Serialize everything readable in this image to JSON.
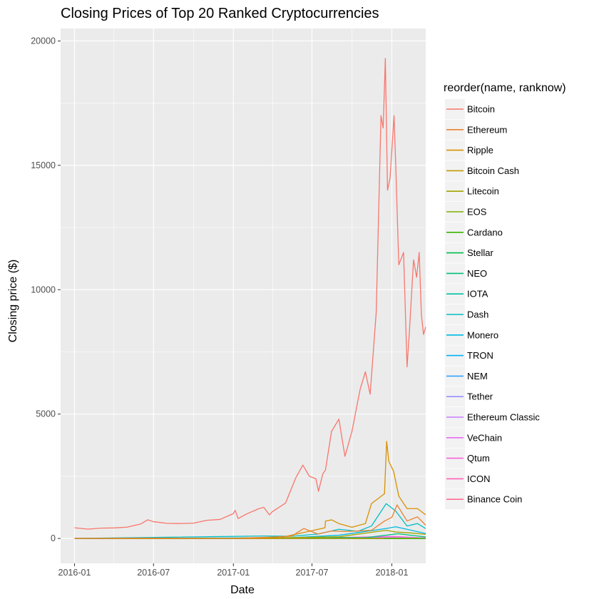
{
  "chart_data": {
    "type": "line",
    "title": "Closing Prices of Top 20 Ranked Cryptocurrencies",
    "xlabel": "Date",
    "ylabel": "Closing price ($)",
    "x_tick_labels": [
      "2016-01",
      "2016-07",
      "2017-01",
      "2017-07",
      "2018-01"
    ],
    "x_ticks": [
      "2016-01-01",
      "2016-07-01",
      "2017-01-01",
      "2017-07-01",
      "2018-01-01"
    ],
    "y_ticks": [
      0,
      5000,
      10000,
      15000,
      20000
    ],
    "y_tick_labels": [
      "0",
      "5000",
      "10000",
      "15000",
      "20000"
    ],
    "xlim": [
      "2015-11-30",
      "2018-03-20"
    ],
    "ylim": [
      -1000,
      20500
    ],
    "grid": true,
    "legend": {
      "title": "reorder(name, ranknow)",
      "placement": "right"
    },
    "series": [
      {
        "name": "Bitcoin",
        "color": "#F8766D",
        "points": [
          [
            "2016-01-01",
            430
          ],
          [
            "2016-02-01",
            375
          ],
          [
            "2016-03-01",
            415
          ],
          [
            "2016-04-01",
            425
          ],
          [
            "2016-05-01",
            455
          ],
          [
            "2016-06-01",
            580
          ],
          [
            "2016-06-18",
            750
          ],
          [
            "2016-07-01",
            675
          ],
          [
            "2016-08-01",
            610
          ],
          [
            "2016-09-01",
            600
          ],
          [
            "2016-10-01",
            615
          ],
          [
            "2016-11-01",
            730
          ],
          [
            "2016-12-01",
            765
          ],
          [
            "2017-01-01",
            1000
          ],
          [
            "2017-01-05",
            1130
          ],
          [
            "2017-01-12",
            800
          ],
          [
            "2017-02-01",
            990
          ],
          [
            "2017-03-01",
            1200
          ],
          [
            "2017-03-12",
            1250
          ],
          [
            "2017-03-25",
            950
          ],
          [
            "2017-04-01",
            1080
          ],
          [
            "2017-05-01",
            1420
          ],
          [
            "2017-05-25",
            2450
          ],
          [
            "2017-06-10",
            2950
          ],
          [
            "2017-06-25",
            2500
          ],
          [
            "2017-07-10",
            2400
          ],
          [
            "2017-07-16",
            1900
          ],
          [
            "2017-07-26",
            2600
          ],
          [
            "2017-08-01",
            2750
          ],
          [
            "2017-08-15",
            4300
          ],
          [
            "2017-09-01",
            4800
          ],
          [
            "2017-09-15",
            3300
          ],
          [
            "2017-10-01",
            4300
          ],
          [
            "2017-10-20",
            6000
          ],
          [
            "2017-11-01",
            6700
          ],
          [
            "2017-11-12",
            5800
          ],
          [
            "2017-11-26",
            9100
          ],
          [
            "2017-12-07",
            17000
          ],
          [
            "2017-12-12",
            16500
          ],
          [
            "2017-12-17",
            19300
          ],
          [
            "2017-12-22",
            14000
          ],
          [
            "2017-12-28",
            14500
          ],
          [
            "2018-01-06",
            17000
          ],
          [
            "2018-01-10",
            15000
          ],
          [
            "2018-01-17",
            11000
          ],
          [
            "2018-01-28",
            11500
          ],
          [
            "2018-02-05",
            6900
          ],
          [
            "2018-02-10",
            8200
          ],
          [
            "2018-02-20",
            11200
          ],
          [
            "2018-02-27",
            10500
          ],
          [
            "2018-03-05",
            11500
          ],
          [
            "2018-03-10",
            9000
          ],
          [
            "2018-03-15",
            8200
          ],
          [
            "2018-03-20",
            8500
          ]
        ]
      },
      {
        "name": "Ethereum",
        "color": "#EA8331",
        "points": [
          [
            "2016-01-01",
            1
          ],
          [
            "2016-06-01",
            14
          ],
          [
            "2017-01-01",
            8
          ],
          [
            "2017-03-15",
            45
          ],
          [
            "2017-05-15",
            90
          ],
          [
            "2017-06-12",
            400
          ],
          [
            "2017-07-15",
            180
          ],
          [
            "2017-08-15",
            300
          ],
          [
            "2017-09-15",
            280
          ],
          [
            "2017-10-15",
            300
          ],
          [
            "2017-11-15",
            330
          ],
          [
            "2017-12-15",
            700
          ],
          [
            "2018-01-01",
            850
          ],
          [
            "2018-01-13",
            1350
          ],
          [
            "2018-02-05",
            700
          ],
          [
            "2018-03-01",
            870
          ],
          [
            "2018-03-20",
            530
          ]
        ]
      },
      {
        "name": "Ripple",
        "color": "#D89000",
        "points": [
          [
            "2016-01-01",
            0.5
          ],
          [
            "2017-03-20",
            0.5
          ],
          [
            "2017-04-10",
            0.5
          ],
          [
            "2017-07-31",
            430
          ],
          [
            "2017-08-01",
            700
          ],
          [
            "2017-08-15",
            750
          ],
          [
            "2017-09-01",
            600
          ],
          [
            "2017-10-01",
            450
          ],
          [
            "2017-11-01",
            600
          ],
          [
            "2017-11-15",
            1400
          ],
          [
            "2017-12-15",
            1800
          ],
          [
            "2017-12-20",
            3900
          ],
          [
            "2017-12-25",
            3100
          ],
          [
            "2018-01-05",
            2700
          ],
          [
            "2018-01-17",
            1700
          ],
          [
            "2018-02-05",
            1200
          ],
          [
            "2018-03-01",
            1200
          ],
          [
            "2018-03-20",
            950
          ]
        ]
      },
      {
        "name": "Bitcoin Cash",
        "color": "#C09B00",
        "points": [
          [
            "2016-01-01",
            0
          ],
          [
            "2017-03-20",
            0
          ],
          [
            "2017-04-10",
            0
          ],
          [
            "2017-04-20",
            0
          ],
          [
            "2017-12-15",
            0
          ]
        ]
      },
      {
        "name": "Litecoin",
        "color": "#A3A500",
        "points": [
          [
            "2016-01-01",
            3
          ],
          [
            "2017-01-01",
            4
          ],
          [
            "2017-05-15",
            30
          ],
          [
            "2017-09-01",
            70
          ],
          [
            "2017-12-19",
            330
          ],
          [
            "2018-01-10",
            260
          ],
          [
            "2018-02-15",
            220
          ],
          [
            "2018-03-20",
            165
          ]
        ]
      },
      {
        "name": "EOS",
        "color": "#7CAE00",
        "points": [
          [
            "2017-07-01",
            2
          ],
          [
            "2017-12-15",
            10
          ],
          [
            "2018-01-15",
            16
          ],
          [
            "2018-03-20",
            6
          ]
        ]
      },
      {
        "name": "Cardano",
        "color": "#39B600",
        "points": [
          [
            "2017-10-01",
            0.02
          ],
          [
            "2018-01-05",
            1
          ],
          [
            "2018-03-20",
            0.2
          ]
        ]
      },
      {
        "name": "Stellar",
        "color": "#00BB4E",
        "points": [
          [
            "2016-01-01",
            0
          ],
          [
            "2018-01-05",
            0.8
          ],
          [
            "2018-03-20",
            0.3
          ]
        ]
      },
      {
        "name": "NEO",
        "color": "#00BF7D",
        "points": [
          [
            "2016-10-01",
            0
          ],
          [
            "2017-06-15",
            40
          ],
          [
            "2017-09-01",
            40
          ],
          [
            "2017-11-01",
            30
          ],
          [
            "2018-01-15",
            190
          ],
          [
            "2018-03-20",
            60
          ]
        ]
      },
      {
        "name": "IOTA",
        "color": "#00C1A3",
        "points": [
          [
            "2017-06-15",
            0.5
          ],
          [
            "2017-12-19",
            5
          ],
          [
            "2018-03-20",
            1.6
          ]
        ]
      },
      {
        "name": "Dash",
        "color": "#00BFC4",
        "points": [
          [
            "2016-01-01",
            3
          ],
          [
            "2017-03-15",
            100
          ],
          [
            "2017-05-15",
            90
          ],
          [
            "2017-07-15",
            180
          ],
          [
            "2017-09-01",
            370
          ],
          [
            "2017-10-15",
            290
          ],
          [
            "2017-11-15",
            500
          ],
          [
            "2017-12-19",
            1400
          ],
          [
            "2018-01-10",
            1100
          ],
          [
            "2018-02-05",
            500
          ],
          [
            "2018-03-01",
            600
          ],
          [
            "2018-03-20",
            400
          ]
        ]
      },
      {
        "name": "Monero",
        "color": "#00BAE0",
        "points": [
          [
            "2016-01-01",
            0.5
          ],
          [
            "2017-05-15",
            30
          ],
          [
            "2017-09-01",
            130
          ],
          [
            "2017-12-19",
            400
          ],
          [
            "2018-01-10",
            470
          ],
          [
            "2018-03-20",
            200
          ]
        ]
      },
      {
        "name": "TRON",
        "color": "#00B0F6",
        "points": [
          [
            "2017-09-15",
            0
          ],
          [
            "2018-01-05",
            0.2
          ],
          [
            "2018-03-20",
            0.04
          ]
        ]
      },
      {
        "name": "NEM",
        "color": "#35A2FF",
        "points": [
          [
            "2016-01-01",
            0
          ],
          [
            "2018-01-05",
            1.8
          ],
          [
            "2018-03-20",
            0.3
          ]
        ]
      },
      {
        "name": "Tether",
        "color": "#9590FF",
        "points": [
          [
            "2016-01-01",
            1
          ],
          [
            "2018-03-20",
            1
          ]
        ]
      },
      {
        "name": "Ethereum Classic",
        "color": "#C77CFF",
        "points": [
          [
            "2016-07-25",
            1
          ],
          [
            "2017-06-15",
            20
          ],
          [
            "2018-01-10",
            40
          ],
          [
            "2018-03-20",
            20
          ]
        ]
      },
      {
        "name": "VeChain",
        "color": "#E76BF3",
        "points": [
          [
            "2017-08-22",
            0.3
          ],
          [
            "2018-01-15",
            8
          ],
          [
            "2018-03-20",
            3
          ]
        ]
      },
      {
        "name": "Qtum",
        "color": "#FA62DB",
        "points": [
          [
            "2017-05-25",
            5
          ],
          [
            "2018-01-05",
            80
          ],
          [
            "2018-03-20",
            20
          ]
        ]
      },
      {
        "name": "ICON",
        "color": "#FF62BC",
        "points": [
          [
            "2017-10-27",
            1
          ],
          [
            "2018-01-10",
            10
          ],
          [
            "2018-03-20",
            3
          ]
        ]
      },
      {
        "name": "Binance Coin",
        "color": "#FF6C91",
        "points": [
          [
            "2017-07-25",
            0.1
          ],
          [
            "2017-12-15",
            5
          ],
          [
            "2018-01-15",
            25
          ],
          [
            "2018-03-20",
            12
          ]
        ]
      }
    ]
  }
}
